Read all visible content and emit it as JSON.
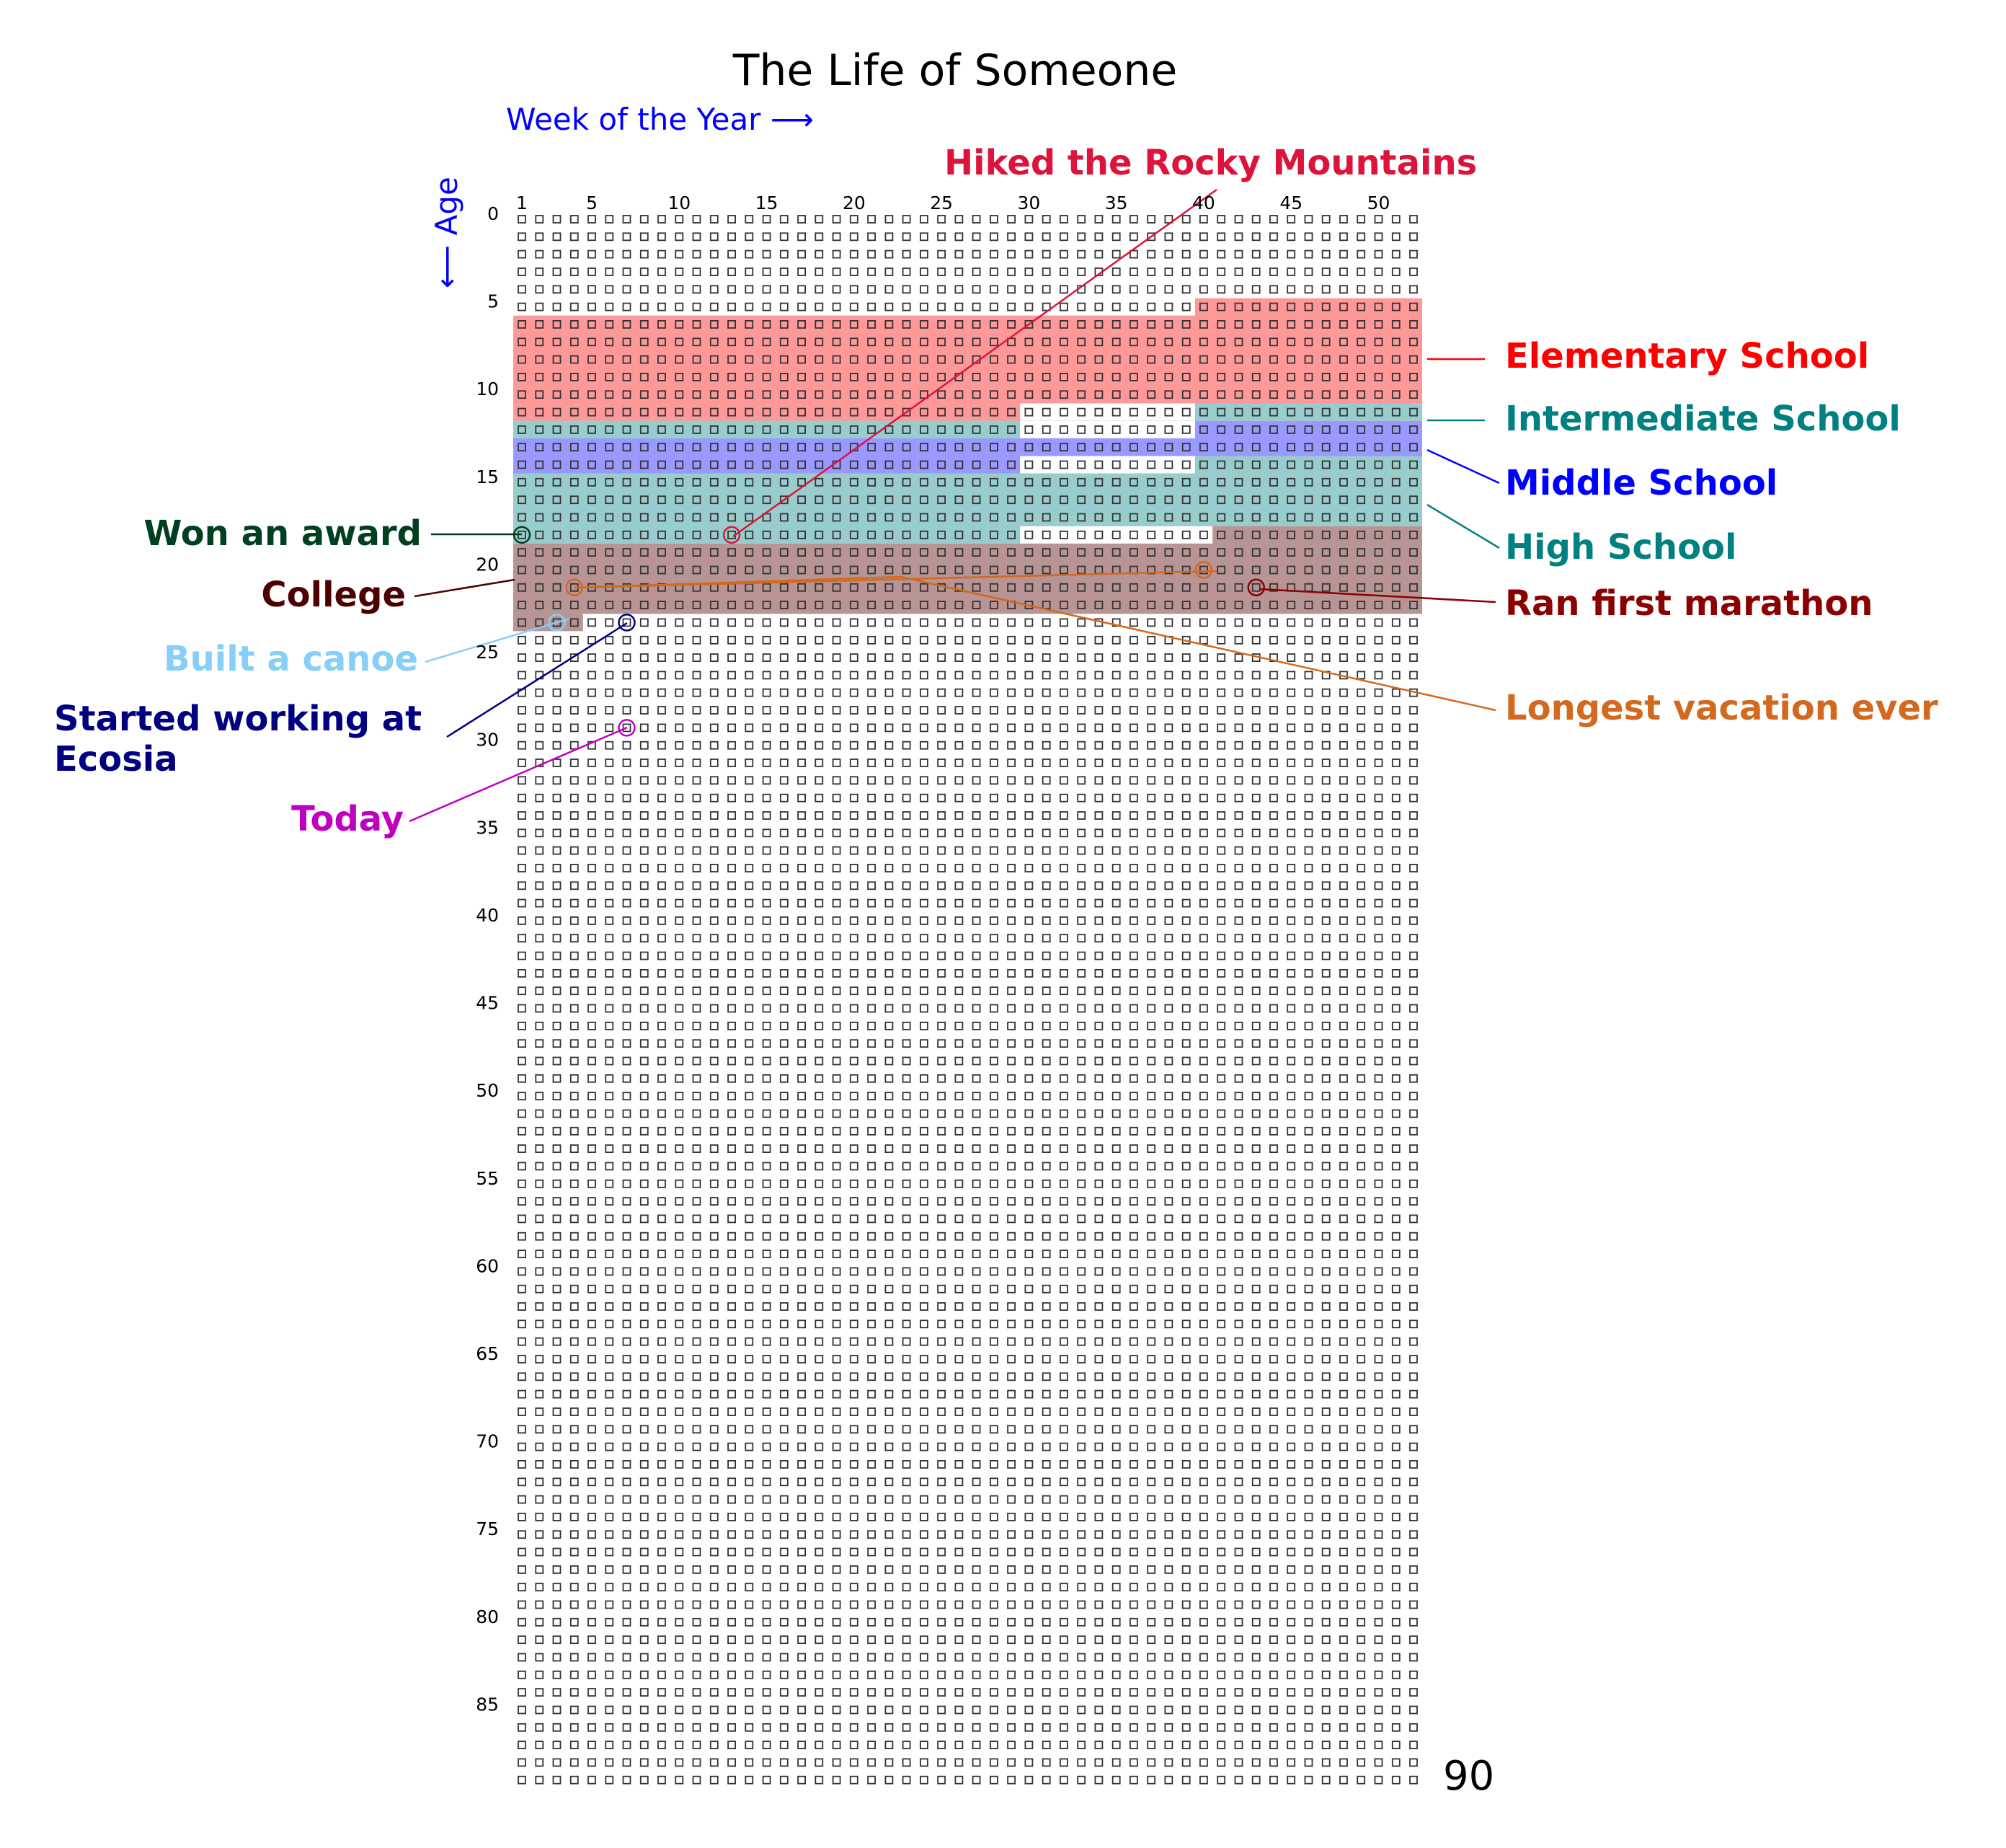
{
  "chart_data": {
    "type": "heatmap",
    "title": "The Life of Someone",
    "xlabel": "Week of the Year  ⟶",
    "ylabel": "⟵  Age",
    "weeks_per_year": 52,
    "years": 90,
    "x_ticks": [
      1,
      5,
      10,
      15,
      20,
      25,
      30,
      35,
      40,
      45,
      50
    ],
    "y_ticks": [
      0,
      5,
      10,
      15,
      20,
      25,
      30,
      35,
      40,
      45,
      50,
      55,
      60,
      65,
      70,
      75,
      80,
      85
    ],
    "end_label": "90",
    "periods": [
      {
        "name": "Elementary School",
        "color": "#ff0000",
        "fill": "#ff9999",
        "start": {
          "year": 5,
          "week": 40
        },
        "end": {
          "year": 11,
          "week": 29
        }
      },
      {
        "name": "Intermediate School",
        "color": "#008080",
        "fill": "#99cccc",
        "start": {
          "year": 11,
          "week": 40
        },
        "end": {
          "year": 12,
          "week": 29
        }
      },
      {
        "name": "Middle School",
        "color": "#0000ff",
        "fill": "#9999ff",
        "start": {
          "year": 12,
          "week": 40
        },
        "end": {
          "year": 14,
          "week": 29
        }
      },
      {
        "name": "High School",
        "color": "#008080",
        "fill": "#99cccc",
        "start": {
          "year": 14,
          "week": 40
        },
        "end": {
          "year": 18,
          "week": 29
        }
      },
      {
        "name": "College",
        "color": "#4d0000",
        "fill": "#b89494",
        "start": {
          "year": 18,
          "week": 41
        },
        "end": {
          "year": 23,
          "week": 4
        }
      }
    ],
    "events": [
      {
        "name": "Hiked the Rocky Mountains",
        "color": "#dc143c",
        "year": 18,
        "week": 13
      },
      {
        "name": "Won an award",
        "color": "#003f1f",
        "year": 18,
        "week": 1
      },
      {
        "name": "Longest vacation ever",
        "color": "#d2691e",
        "year": 20,
        "week": 40
      },
      {
        "name": "Longest vacation ever",
        "color": "#d2691e",
        "year": 21,
        "week": 4
      },
      {
        "name": "Ran first marathon",
        "color": "#8b0000",
        "year": 21,
        "week": 43
      },
      {
        "name": "Built a canoe",
        "color": "#87cefa",
        "year": 23,
        "week": 3
      },
      {
        "name": "Started working at Ecosia",
        "color": "#000080",
        "year": 23,
        "week": 7
      },
      {
        "name": "Today",
        "color": "#c000c0",
        "year": 29,
        "week": 7
      }
    ]
  },
  "labels": {
    "elementary": "Elementary School",
    "intermediate": "Intermediate School",
    "middle": "Middle School",
    "high": "High School",
    "college": "College",
    "marathon": "Ran first marathon",
    "vacation": "Longest vacation ever",
    "rocky": "Hiked the Rocky Mountains",
    "award": "Won an award",
    "canoe": "Built a canoe",
    "ecosia_line1": "Started working at",
    "ecosia_line2": "Ecosia",
    "today": "Today"
  },
  "colors": {
    "elementary": "#ff0000",
    "intermediate": "#008080",
    "middle": "#0000ff",
    "high": "#008080",
    "college": "#4d0000",
    "marathon": "#8b0000",
    "vacation": "#d2691e",
    "rocky": "#dc143c",
    "award": "#003f1f",
    "canoe": "#87cefa",
    "ecosia": "#000080",
    "today": "#c000c0",
    "axis": "#0000ff"
  }
}
